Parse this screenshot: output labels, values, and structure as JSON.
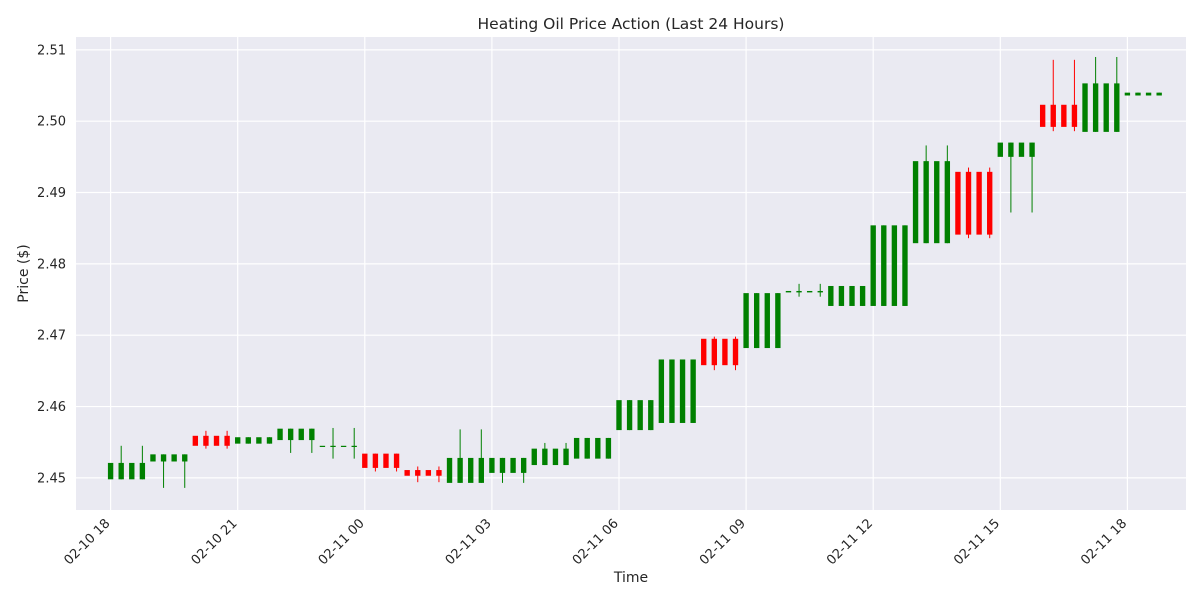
{
  "chart_data": {
    "type": "candlestick",
    "title": "Heating Oil Price Action (Last 24 Hours)",
    "xlabel": "Time",
    "ylabel": "Price ($)",
    "ylim": [
      2.4455,
      2.5118
    ],
    "xlim": [
      "02-10 17:11",
      "02-11 19:23"
    ],
    "x_ticks": [
      "02-10 18",
      "02-10 21",
      "02-11 00",
      "02-11 03",
      "02-11 06",
      "02-11 09",
      "02-11 12",
      "02-11 15",
      "02-11 18"
    ],
    "y_ticks": [
      2.45,
      2.46,
      2.47,
      2.48,
      2.49,
      2.5,
      2.51
    ],
    "grid": true,
    "background": "#eaeaf2",
    "colors": {
      "up": "#008000",
      "down": "#ff0000"
    },
    "hours": [
      {
        "start": "02-10 18:00",
        "open": 2.4498,
        "close": 2.4521,
        "wick_low": 2.4498,
        "wick_high": 2.4545
      },
      {
        "start": "02-10 19:00",
        "open": 2.4523,
        "close": 2.4533,
        "wick_low": 2.4486,
        "wick_high": 2.4533
      },
      {
        "start": "02-10 20:00",
        "open": 2.4559,
        "close": 2.4545,
        "wick_low": 2.4541,
        "wick_high": 2.4566
      },
      {
        "start": "02-10 21:00",
        "open": 2.4548,
        "close": 2.4557,
        "wick_low": 2.4548,
        "wick_high": 2.4557
      },
      {
        "start": "02-10 22:00",
        "open": 2.4553,
        "close": 2.4569,
        "wick_low": 2.4535,
        "wick_high": 2.4569
      },
      {
        "start": "02-10 23:00",
        "open": 2.4545,
        "close": 2.4545,
        "wick_low": 2.4527,
        "wick_high": 2.457
      },
      {
        "start": "02-11 00:00",
        "open": 2.4534,
        "close": 2.4514,
        "wick_low": 2.4509,
        "wick_high": 2.4534
      },
      {
        "start": "02-11 01:00",
        "open": 2.4511,
        "close": 2.4503,
        "wick_low": 2.4494,
        "wick_high": 2.4516
      },
      {
        "start": "02-11 02:00",
        "open": 2.4493,
        "close": 2.4528,
        "wick_low": 2.4493,
        "wick_high": 2.4568
      },
      {
        "start": "02-11 03:00",
        "open": 2.4507,
        "close": 2.4528,
        "wick_low": 2.4493,
        "wick_high": 2.4528
      },
      {
        "start": "02-11 04:00",
        "open": 2.4518,
        "close": 2.4541,
        "wick_low": 2.4518,
        "wick_high": 2.4549
      },
      {
        "start": "02-11 05:00",
        "open": 2.4527,
        "close": 2.4556,
        "wick_low": 2.4527,
        "wick_high": 2.4556
      },
      {
        "start": "02-11 06:00",
        "open": 2.4567,
        "close": 2.4609,
        "wick_low": 2.4567,
        "wick_high": 2.4609
      },
      {
        "start": "02-11 07:00",
        "open": 2.4577,
        "close": 2.4666,
        "wick_low": 2.4577,
        "wick_high": 2.4666
      },
      {
        "start": "02-11 08:00",
        "open": 2.4695,
        "close": 2.4658,
        "wick_low": 2.4651,
        "wick_high": 2.4698
      },
      {
        "start": "02-11 09:00",
        "open": 2.4682,
        "close": 2.4759,
        "wick_low": 2.4682,
        "wick_high": 2.4759
      },
      {
        "start": "02-11 10:00",
        "open": 2.476,
        "close": 2.4762,
        "wick_low": 2.4754,
        "wick_high": 2.4772
      },
      {
        "start": "02-11 11:00",
        "open": 2.4741,
        "close": 2.4769,
        "wick_low": 2.4741,
        "wick_high": 2.4769
      },
      {
        "start": "02-11 12:00",
        "open": 2.4741,
        "close": 2.4854,
        "wick_low": 2.4741,
        "wick_high": 2.4854
      },
      {
        "start": "02-11 13:00",
        "open": 2.4829,
        "close": 2.4944,
        "wick_low": 2.4829,
        "wick_high": 2.4966
      },
      {
        "start": "02-11 14:00",
        "open": 2.4929,
        "close": 2.4841,
        "wick_low": 2.4836,
        "wick_high": 2.4935
      },
      {
        "start": "02-11 15:00",
        "open": 2.495,
        "close": 2.497,
        "wick_low": 2.4872,
        "wick_high": 2.497
      },
      {
        "start": "02-11 16:00",
        "open": 2.5023,
        "close": 2.4992,
        "wick_low": 2.4986,
        "wick_high": 2.5086
      },
      {
        "start": "02-11 17:00",
        "open": 2.4985,
        "close": 2.5053,
        "wick_low": 2.4985,
        "wick_high": 2.509
      },
      {
        "start": "02-11 18:00",
        "open": 2.5036,
        "close": 2.504,
        "wick_low": 2.5036,
        "wick_high": 2.504
      }
    ]
  }
}
